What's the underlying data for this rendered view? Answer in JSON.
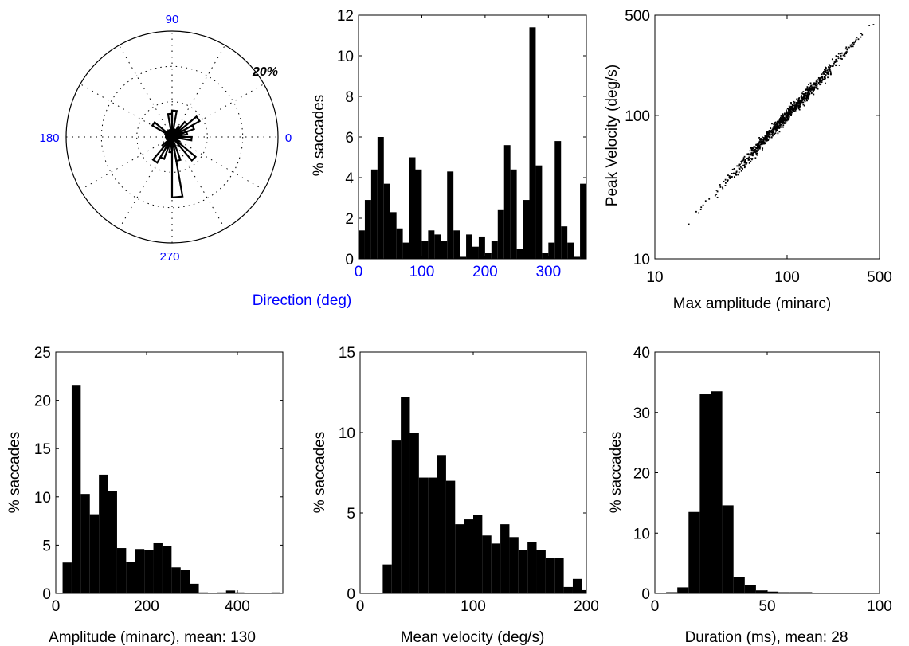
{
  "colors": {
    "bars": "#000000",
    "axes": "#000000",
    "blue_labels": "#0000ff"
  },
  "charts": {
    "polar": {
      "type": "polar-histogram",
      "angle_labels": [
        "90",
        "0",
        "270",
        "180"
      ],
      "radial_label": "20%",
      "directions": [
        0,
        10,
        20,
        30,
        40,
        50,
        60,
        70,
        80,
        90,
        100,
        110,
        120,
        130,
        140,
        150,
        160,
        170,
        180,
        190,
        200,
        210,
        220,
        230,
        240,
        250,
        260,
        270,
        280,
        290,
        300,
        310,
        320,
        330,
        340,
        350
      ],
      "values": [
        1.4,
        2.9,
        4.4,
        6.0,
        3.7,
        2.3,
        1.5,
        0.8,
        5.0,
        4.4,
        0.9,
        1.4,
        1.2,
        0.9,
        4.3,
        1.4,
        0.1,
        1.2,
        0.6,
        1.1,
        0.3,
        0.9,
        2.4,
        5.6,
        4.4,
        0.5,
        2.9,
        11.4,
        4.6,
        0.3,
        0.8,
        5.8,
        1.6,
        0.8,
        0.1,
        3.7
      ]
    },
    "direction": {
      "type": "bar",
      "xlabel": "Direction (deg)",
      "ylabel": "% saccades",
      "xlim": [
        0,
        360
      ],
      "ylim": [
        0,
        12
      ],
      "xticks": [
        "0",
        "100",
        "200",
        "300"
      ],
      "yticks": [
        "0",
        "2",
        "4",
        "6",
        "8",
        "10",
        "12"
      ],
      "bin_starts": [
        0,
        10,
        20,
        30,
        40,
        50,
        60,
        70,
        80,
        90,
        100,
        110,
        120,
        130,
        140,
        150,
        160,
        170,
        180,
        190,
        200,
        210,
        220,
        230,
        240,
        250,
        260,
        270,
        280,
        290,
        300,
        310,
        320,
        330,
        340,
        350
      ],
      "values": [
        1.4,
        2.9,
        4.4,
        6.0,
        3.7,
        2.3,
        1.5,
        0.8,
        5.0,
        4.4,
        0.9,
        1.4,
        1.2,
        0.9,
        4.3,
        1.4,
        0.1,
        1.2,
        0.6,
        1.1,
        0.3,
        0.9,
        2.4,
        5.6,
        4.4,
        0.5,
        2.9,
        11.4,
        4.6,
        0.3,
        0.8,
        5.8,
        1.6,
        0.8,
        0.1,
        3.7
      ]
    },
    "scatter": {
      "type": "scatter",
      "xlabel": "Max amplitude (minarc)",
      "ylabel": "Peak Velocity (deg/s)",
      "xscale": "log",
      "yscale": "log",
      "xlim": [
        10,
        500
      ],
      "ylim": [
        10,
        500
      ],
      "xticks": [
        "10",
        "100",
        "500"
      ],
      "yticks": [
        "10",
        "100",
        "500"
      ],
      "trend": {
        "x_range": [
          18,
          480
        ],
        "relation": "velocity ≈ 1.0 × amplitude^1.0",
        "approx_points": 900
      }
    },
    "amplitude": {
      "type": "bar",
      "xlabel": "Amplitude (minarc), mean: 130",
      "ylabel": "% saccades",
      "xlim": [
        0,
        500
      ],
      "ylim": [
        0,
        25
      ],
      "xticks": [
        "0",
        "200",
        "400"
      ],
      "yticks": [
        "0",
        "5",
        "10",
        "15",
        "20",
        "25"
      ],
      "bin_starts": [
        15,
        35,
        55,
        75,
        95,
        115,
        135,
        155,
        175,
        195,
        215,
        235,
        255,
        275,
        295,
        315,
        335,
        355,
        375,
        395,
        415,
        435,
        455,
        475
      ],
      "bin_width": 20,
      "values": [
        3.2,
        21.6,
        10.3,
        8.2,
        12.3,
        10.6,
        4.7,
        3.3,
        4.6,
        4.5,
        5.2,
        4.9,
        2.7,
        2.4,
        1.0,
        0.1,
        0.0,
        0.1,
        0.3,
        0.1,
        0.0,
        0.0,
        0.0,
        0.1
      ]
    },
    "velocity": {
      "type": "bar",
      "xlabel": "Mean velocity (deg/s)",
      "ylabel": "% saccades",
      "xlim": [
        0,
        200
      ],
      "ylim": [
        0,
        15
      ],
      "xticks": [
        "0",
        "100",
        "200"
      ],
      "yticks": [
        "0",
        "5",
        "10",
        "15"
      ],
      "bin_starts": [
        20,
        28,
        36,
        44,
        52,
        60,
        68,
        76,
        84,
        92,
        100,
        108,
        116,
        124,
        132,
        140,
        148,
        156,
        164,
        172,
        180,
        188,
        196
      ],
      "bin_width": 8,
      "values": [
        1.8,
        9.5,
        12.2,
        10.0,
        7.2,
        7.2,
        8.6,
        7.0,
        4.3,
        4.6,
        4.9,
        3.6,
        3.1,
        4.3,
        3.5,
        2.7,
        3.2,
        2.7,
        2.2,
        2.2,
        0.4,
        0.9,
        0.2
      ]
    },
    "duration": {
      "type": "bar",
      "xlabel": "Duration (ms), mean: 28",
      "ylabel": "% saccades",
      "xlim": [
        0,
        100
      ],
      "ylim": [
        0,
        40
      ],
      "xticks": [
        "0",
        "50",
        "100"
      ],
      "yticks": [
        "0",
        "10",
        "20",
        "30",
        "40"
      ],
      "bin_starts": [
        5,
        10,
        15,
        20,
        25,
        30,
        35,
        40,
        45,
        50,
        55,
        60,
        65,
        70,
        75,
        80,
        85,
        90,
        95
      ],
      "bin_width": 5,
      "values": [
        0.2,
        1.0,
        13.5,
        33.0,
        33.5,
        14.6,
        2.7,
        1.4,
        0.5,
        0.3,
        0.2,
        0.2,
        0.2,
        0.1,
        0.1,
        0.1,
        0.1,
        0.1,
        0.1
      ]
    }
  }
}
